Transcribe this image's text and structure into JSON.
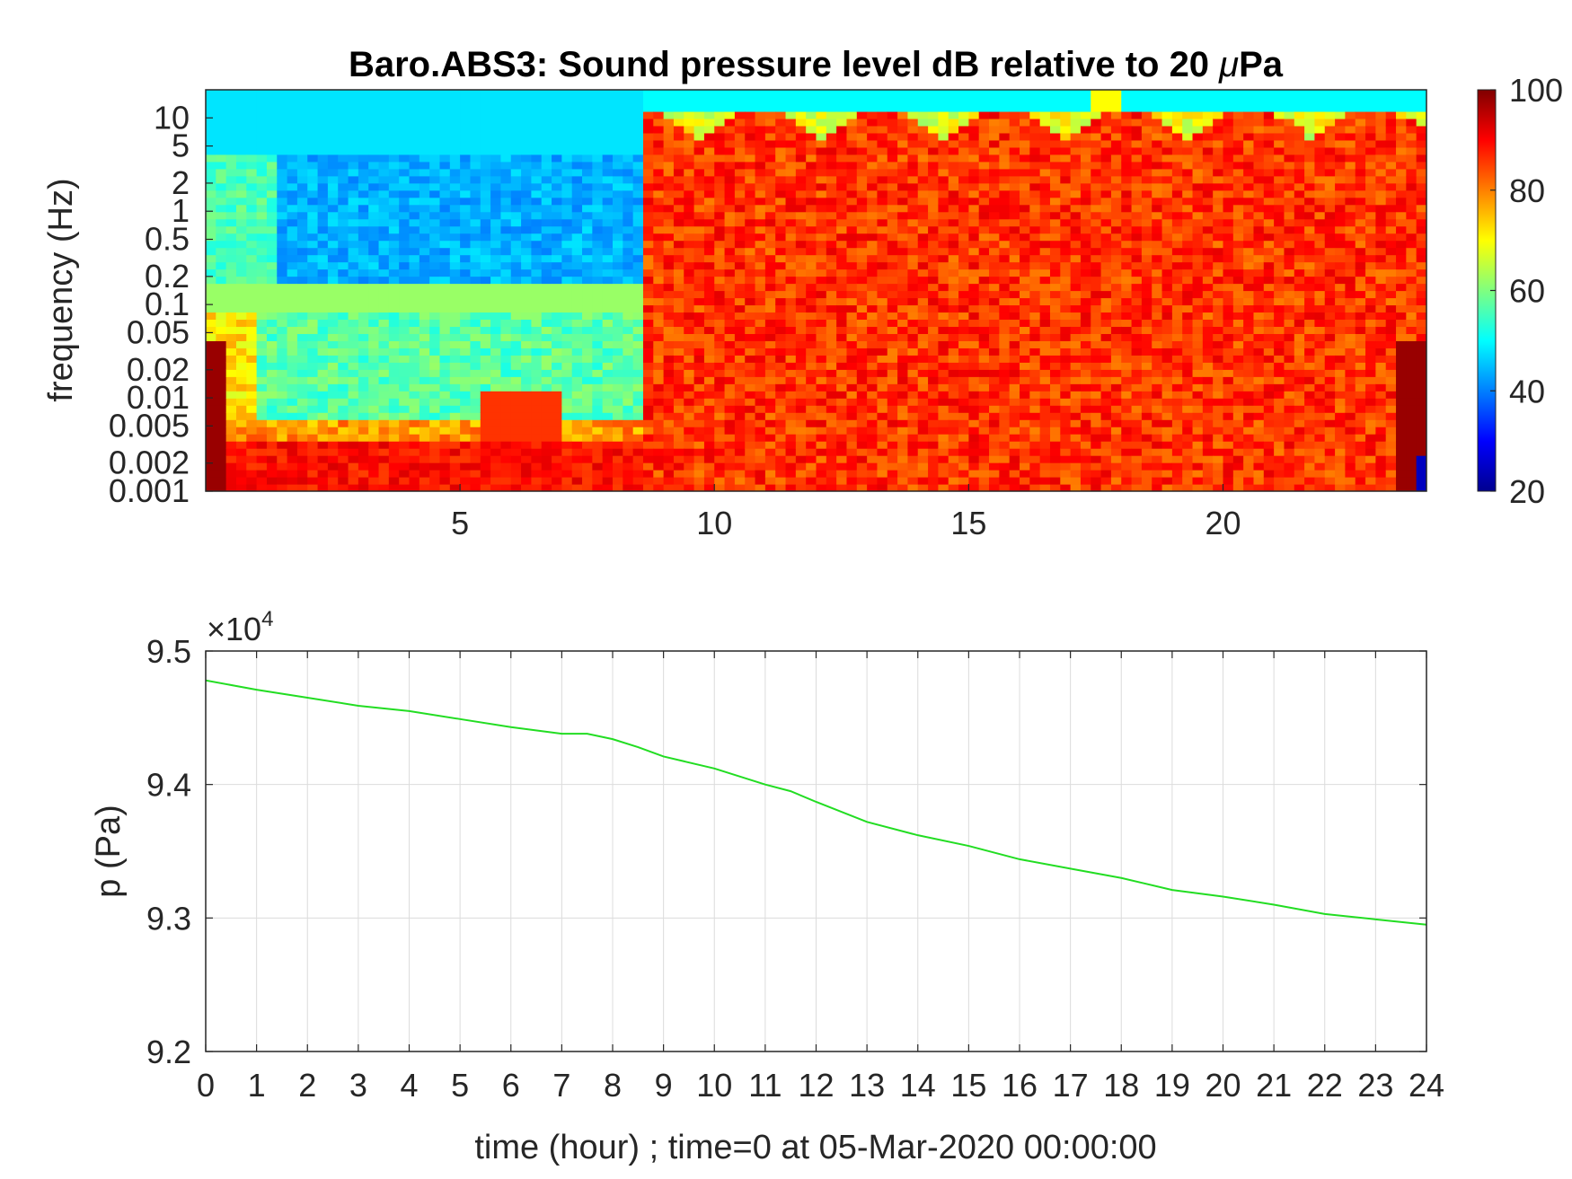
{
  "chart_data": [
    {
      "type": "heatmap",
      "title": "Baro.ABS3: Sound pressure level dB relative to 20 μPa",
      "title_main": "Baro.ABS3: Sound pressure level dB relative to 20 ",
      "title_mu": "μ",
      "title_end": "Pa",
      "xlabel": "",
      "ylabel": "frequency (Hz)",
      "xlim": [
        0,
        24
      ],
      "ylim": [
        0.001,
        20
      ],
      "yscale": "log",
      "x_ticks": [
        "5",
        "10",
        "15",
        "20"
      ],
      "y_ticks": [
        "0.001",
        "0.002",
        "0.005",
        "0.01",
        "0.02",
        "0.05",
        "0.1",
        "0.2",
        "0.5",
        "1",
        "2",
        "5",
        "10"
      ],
      "colormap": "jet",
      "colorbar": {
        "min": 20,
        "max": 100,
        "ticks": [
          "20",
          "40",
          "60",
          "80",
          "100"
        ]
      },
      "description_regions": [
        {
          "time_start": 0,
          "time_end": 8.5,
          "low_freq_level": "red",
          "mid_freq_level": "cyan/yellow",
          "high_freq_level": "blue/cyan"
        },
        {
          "time_start": 8.5,
          "time_end": 24,
          "level": "red/orange broadband up to ~10 Hz"
        }
      ]
    },
    {
      "type": "line",
      "title": "",
      "xlabel": "time (hour) ; time=0 at 05-Mar-2020 00:00:00",
      "ylabel": "p (Pa)",
      "xlim": [
        0,
        24
      ],
      "ylim": [
        9.2,
        9.5
      ],
      "y_multiplier": "×10",
      "y_multiplier_exp": "4",
      "x_ticks": [
        "0",
        "1",
        "2",
        "3",
        "4",
        "5",
        "6",
        "7",
        "8",
        "9",
        "10",
        "11",
        "12",
        "13",
        "14",
        "15",
        "16",
        "17",
        "18",
        "19",
        "20",
        "21",
        "22",
        "23",
        "24"
      ],
      "y_ticks": [
        "9.2",
        "9.3",
        "9.4",
        "9.5"
      ],
      "grid": true,
      "series": [
        {
          "color": "#22dd22",
          "x": [
            0,
            1,
            2,
            3,
            4,
            5,
            6,
            7,
            7.5,
            8,
            8.5,
            9,
            10,
            11,
            11.5,
            12,
            13,
            14,
            15,
            16,
            17,
            18,
            19,
            20,
            21,
            22,
            23,
            24
          ],
          "y": [
            9.478,
            9.471,
            9.465,
            9.459,
            9.455,
            9.449,
            9.443,
            9.438,
            9.438,
            9.434,
            9.428,
            9.421,
            9.412,
            9.4,
            9.395,
            9.387,
            9.372,
            9.362,
            9.354,
            9.344,
            9.337,
            9.33,
            9.321,
            9.316,
            9.31,
            9.303,
            9.299,
            9.295
          ]
        }
      ]
    }
  ]
}
